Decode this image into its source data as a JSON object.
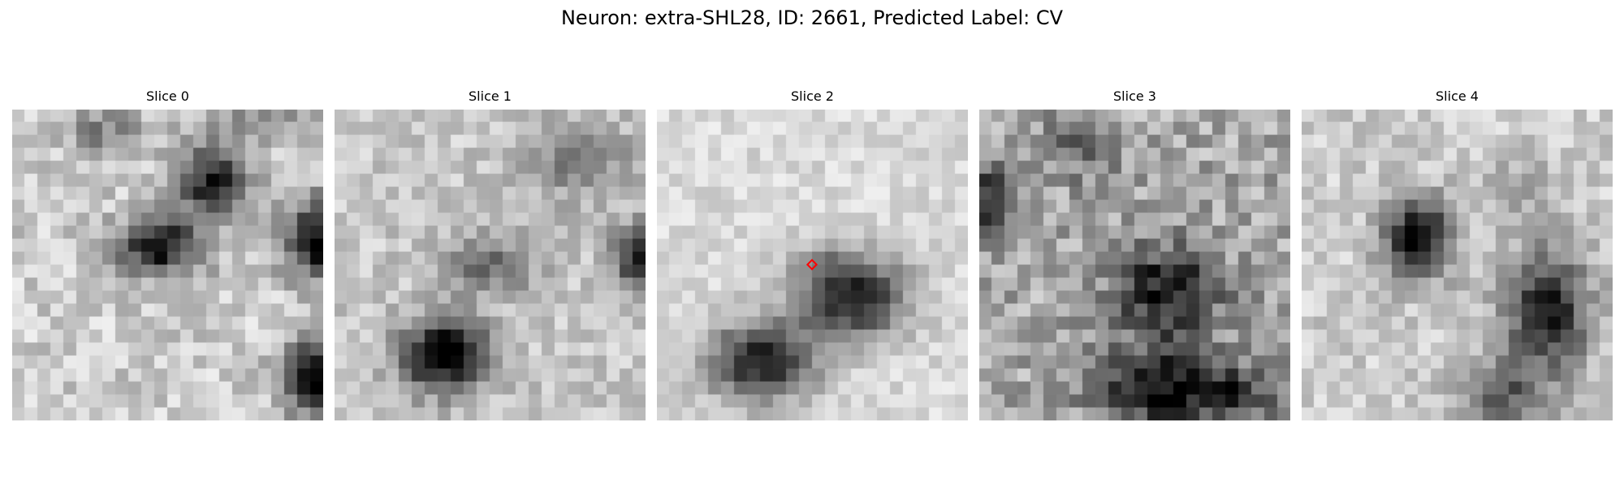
{
  "figure": {
    "title": "Neuron: extra-SHL28, ID: 2661, Predicted Label: CV"
  },
  "panels": [
    {
      "title": "Slice 0"
    },
    {
      "title": "Slice 1"
    },
    {
      "title": "Slice 2"
    },
    {
      "title": "Slice 3"
    },
    {
      "title": "Slice 4"
    }
  ],
  "marker": {
    "color": "#ff0000",
    "shape": "diamond"
  }
}
